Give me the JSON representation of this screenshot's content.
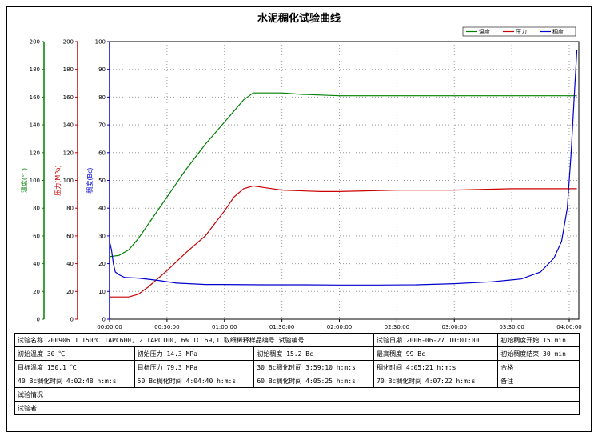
{
  "chart_data": {
    "type": "line",
    "title": "水泥稠化试验曲线",
    "legend": {
      "placement": "top-right",
      "entries": [
        "温度",
        "压力",
        "稠度"
      ]
    },
    "colors": {
      "temperature": "#008000",
      "pressure": "#cc0000",
      "consistency": "#0000cc"
    },
    "x_ticks": [
      "00:00:00",
      "00:30:00",
      "01:00:00",
      "01:30:00",
      "02:00:00",
      "02:30:00",
      "03:00:00",
      "03:30:00",
      "04:00:00"
    ],
    "x_range_min": [
      0,
      245
    ],
    "axes": [
      {
        "key": "temperature",
        "label": "温度(℃)",
        "range": [
          0,
          200
        ],
        "ticks": [
          0,
          20,
          40,
          60,
          80,
          100,
          120,
          140,
          160,
          180,
          200
        ]
      },
      {
        "key": "pressure",
        "label": "压力(MPa)",
        "range": [
          0,
          200
        ],
        "ticks": [
          0,
          20,
          40,
          60,
          80,
          100,
          120,
          140,
          160,
          180,
          200
        ]
      },
      {
        "key": "consistency",
        "label": "稠度(Bc)",
        "range": [
          0,
          100
        ],
        "ticks": [
          0,
          10,
          20,
          30,
          40,
          50,
          60,
          70,
          80,
          90,
          100
        ]
      }
    ],
    "series": [
      {
        "name": "温度",
        "axis": "temperature",
        "x": [
          0,
          5,
          10,
          15,
          20,
          30,
          40,
          50,
          60,
          70,
          75,
          80,
          90,
          100,
          120,
          150,
          180,
          210,
          240,
          244
        ],
        "y": [
          45,
          46,
          50,
          58,
          68,
          88,
          108,
          126,
          142,
          158,
          163,
          163,
          163,
          162,
          161,
          161,
          161,
          161,
          161,
          161
        ]
      },
      {
        "name": "压力",
        "axis": "pressure",
        "x": [
          0,
          10,
          15,
          20,
          30,
          40,
          50,
          60,
          65,
          70,
          75,
          80,
          90,
          110,
          120,
          150,
          180,
          210,
          240,
          244
        ],
        "y": [
          16,
          16,
          18,
          23,
          35,
          48,
          60,
          78,
          88,
          94,
          96,
          95,
          93,
          92,
          92,
          93,
          93,
          94,
          94,
          94
        ]
      },
      {
        "name": "稠度",
        "axis": "consistency",
        "x": [
          0,
          1,
          2,
          3,
          5,
          8,
          15,
          25,
          35,
          50,
          60,
          80,
          100,
          120,
          140,
          160,
          180,
          200,
          215,
          225,
          232,
          236,
          239,
          241,
          243,
          244
        ],
        "y": [
          28,
          25,
          20,
          17,
          16,
          15,
          14.8,
          14,
          13,
          12.5,
          12.5,
          12.4,
          12.4,
          12.3,
          12.3,
          12.4,
          12.8,
          13.5,
          14.5,
          17,
          22,
          28,
          40,
          60,
          85,
          97
        ]
      }
    ]
  },
  "info_rows": [
    [
      "试验名称  200906 J  150℃ TAPC600, 2 TAPC100, 6% TC 69,1  取细稀释样品编号  试验编号",
      "试验日期  2006-06-27 10:01:00",
      "初始稠度开始      15 min"
    ],
    [
      "初始温度      30 ℃",
      "初始压力      14.3 MPa",
      "初始稠度      15.2 Bc",
      "最高稠度      99 Bc",
      "初始稠度结束      30 min"
    ],
    [
      "目标温度      150.1 ℃",
      "目标压力      79.3 MPa",
      "30 Bc稠化时间   3:59:10 h:m:s",
      "稠化时间   4:05:21 h:m:s",
      "合格"
    ],
    [
      "40 Bc稠化时间   4:02:48 h:m:s",
      "50 Bc稠化时间   4:04:40 h:m:s",
      "60 Bc稠化时间   4:05:25 h:m:s",
      "70 Bc稠化时间   4:07:22 h:m:s",
      "备注"
    ],
    [
      "试验情况"
    ],
    [
      "试验者"
    ]
  ]
}
